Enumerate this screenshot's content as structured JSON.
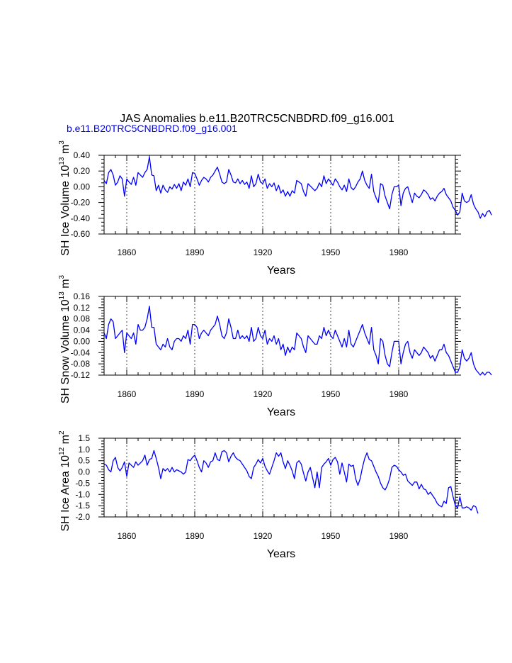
{
  "header": {
    "title": "JAS Anomalies b.e11.B20TRC5CNBDRD.f09_g16.001",
    "subtitle": "b.e11.B20TRC5CNBDRD.f09_g16.001"
  },
  "colors": {
    "series": "#0000ff",
    "axis": "#000000"
  },
  "chart_data": [
    {
      "type": "line",
      "title": "JAS Anomalies b.e11.B20TRC5CNBDRD.f09_g16.001",
      "xlabel": "Years",
      "ylabel_html": "SH Ice Volume 10<tspan baseline-shift=\"super\" font-size=\"10\">13</tspan> m<tspan baseline-shift=\"super\" font-size=\"10\">3</tspan>",
      "ylabel_parts": [
        "SH Ice Volume 10",
        "13",
        " m",
        "3"
      ],
      "xlim": [
        1850,
        2005
      ],
      "ylim": [
        -0.6,
        0.4
      ],
      "xticks": [
        1860,
        1890,
        1920,
        1950,
        1980
      ],
      "xtick_labels": [
        "1860",
        "1890",
        "1920",
        "1950",
        "1980"
      ],
      "yticks": [
        -0.6,
        -0.4,
        -0.2,
        0.0,
        0.2,
        0.4
      ],
      "ytick_labels": [
        "-0.60",
        "-0.40",
        "-0.20",
        "0.00",
        "0.20",
        "0.40"
      ],
      "grid": "vertical dashed at x ticks",
      "series": [
        {
          "name": "b.e11.B20TRC5CNBDRD.f09_g16.001",
          "x_start": 1850,
          "values": [
            0.08,
            0.04,
            0.18,
            0.22,
            0.15,
            0.02,
            0.06,
            0.14,
            0.1,
            -0.12,
            0.1,
            0.06,
            0.03,
            0.12,
            0.02,
            0.18,
            0.15,
            0.12,
            0.18,
            0.22,
            0.38,
            0.15,
            0.14,
            -0.05,
            0.02,
            -0.08,
            0.02,
            -0.04,
            -0.07,
            0.0,
            -0.03,
            0.03,
            -0.02,
            0.04,
            -0.05,
            0.06,
            0.02,
            0.1,
            0.0,
            0.18,
            0.17,
            0.1,
            0.02,
            0.08,
            0.12,
            0.1,
            0.06,
            0.12,
            0.15,
            0.2,
            0.25,
            0.16,
            0.06,
            0.04,
            0.06,
            0.22,
            0.15,
            0.06,
            0.05,
            0.1,
            0.04,
            0.08,
            0.03,
            0.06,
            -0.02,
            0.14,
            0.0,
            0.04,
            0.16,
            0.06,
            0.04,
            0.1,
            -0.02,
            0.04,
            0.0,
            0.05,
            -0.05,
            0.02,
            -0.08,
            -0.04,
            -0.12,
            -0.06,
            -0.12,
            -0.05,
            -0.08,
            0.08,
            0.06,
            0.04,
            -0.06,
            -0.12,
            0.04,
            0.01,
            -0.02,
            -0.05,
            -0.02,
            0.05,
            0.0,
            0.14,
            0.04,
            0.1,
            0.06,
            0.02,
            0.1,
            0.06,
            0.0,
            -0.04,
            0.02,
            -0.06,
            0.1,
            -0.01,
            -0.04,
            0.0,
            0.06,
            0.1,
            0.2,
            0.08,
            0.02,
            -0.02,
            0.16,
            -0.06,
            -0.14,
            -0.2,
            0.04,
            0.02,
            -0.12,
            -0.2,
            -0.28,
            -0.1,
            0.0,
            0.0,
            0.02,
            -0.24,
            -0.08,
            -0.02,
            0.0,
            -0.1,
            -0.2,
            -0.08,
            -0.12,
            -0.14,
            -0.1,
            -0.04,
            -0.06,
            -0.1,
            -0.16,
            -0.14,
            -0.18,
            -0.12,
            -0.08,
            -0.06,
            -0.02,
            -0.1,
            -0.14,
            -0.18,
            -0.26,
            -0.3,
            -0.36,
            -0.32,
            -0.08,
            -0.18,
            -0.2,
            -0.18,
            -0.1,
            -0.22,
            -0.28,
            -0.32,
            -0.4,
            -0.34,
            -0.38,
            -0.32,
            -0.3,
            -0.36
          ]
        }
      ]
    },
    {
      "type": "line",
      "xlabel": "Years",
      "ylabel_parts": [
        "SH Snow Volume 10",
        "13",
        " m",
        "3"
      ],
      "xlim": [
        1850,
        2005
      ],
      "ylim": [
        -0.12,
        0.16
      ],
      "xticks": [
        1860,
        1890,
        1920,
        1950,
        1980
      ],
      "xtick_labels": [
        "1860",
        "1890",
        "1920",
        "1950",
        "1980"
      ],
      "yticks": [
        -0.12,
        -0.08,
        -0.04,
        0.0,
        0.04,
        0.08,
        0.12,
        0.16
      ],
      "ytick_labels": [
        "-0.12",
        "-0.08",
        "-0.04",
        "0.00",
        "0.04",
        "0.08",
        "0.12",
        "0.16"
      ],
      "grid": "vertical dashed at x ticks",
      "series": [
        {
          "name": "b.e11.B20TRC5CNBDRD.f09_g16.001",
          "x_start": 1850,
          "values": [
            0.03,
            0.01,
            0.06,
            0.08,
            0.07,
            0.01,
            0.02,
            0.03,
            0.04,
            -0.04,
            0.03,
            0.02,
            0.01,
            0.03,
            -0.01,
            0.06,
            0.04,
            0.04,
            0.05,
            0.08,
            0.125,
            0.05,
            0.05,
            -0.01,
            -0.02,
            -0.03,
            -0.01,
            -0.02,
            0.01,
            -0.02,
            -0.03,
            0.0,
            0.01,
            0.01,
            0.0,
            0.02,
            0.01,
            0.04,
            -0.01,
            0.06,
            0.06,
            0.05,
            0.01,
            0.03,
            0.04,
            0.03,
            0.02,
            0.04,
            0.05,
            0.06,
            0.09,
            0.06,
            0.02,
            0.01,
            0.03,
            0.08,
            0.05,
            0.01,
            0.01,
            0.04,
            0.01,
            0.02,
            0.01,
            0.02,
            0.0,
            0.05,
            0.0,
            0.01,
            0.05,
            0.02,
            0.01,
            0.04,
            -0.01,
            0.01,
            0.0,
            0.02,
            -0.01,
            0.01,
            -0.03,
            -0.01,
            -0.05,
            -0.02,
            -0.04,
            -0.02,
            -0.03,
            0.03,
            0.02,
            0.01,
            -0.02,
            -0.04,
            0.02,
            0.01,
            0.0,
            -0.01,
            -0.01,
            0.02,
            0.01,
            0.05,
            0.02,
            0.04,
            0.02,
            0.01,
            0.04,
            0.02,
            0.0,
            -0.02,
            0.01,
            -0.02,
            0.04,
            -0.01,
            -0.02,
            0.0,
            0.02,
            0.04,
            0.06,
            0.03,
            0.01,
            -0.01,
            0.05,
            -0.03,
            -0.05,
            -0.08,
            0.01,
            0.0,
            -0.05,
            -0.08,
            -0.09,
            -0.04,
            0.0,
            0.0,
            0.0,
            -0.08,
            -0.04,
            -0.01,
            0.0,
            -0.04,
            -0.06,
            -0.03,
            -0.04,
            -0.05,
            -0.04,
            -0.02,
            -0.03,
            -0.04,
            -0.06,
            -0.05,
            -0.07,
            -0.05,
            -0.03,
            -0.03,
            -0.01,
            -0.04,
            -0.05,
            -0.07,
            -0.09,
            -0.11,
            -0.11,
            -0.09,
            -0.03,
            -0.06,
            -0.07,
            -0.06,
            -0.04,
            -0.08,
            -0.1,
            -0.11,
            -0.12,
            -0.11,
            -0.12,
            -0.11,
            -0.11,
            -0.12
          ]
        }
      ]
    },
    {
      "type": "line",
      "xlabel": "Years",
      "ylabel_parts": [
        "SH Ice Area 10",
        "12",
        " m",
        "2"
      ],
      "xlim": [
        1850,
        2005
      ],
      "ylim": [
        -2.0,
        1.5
      ],
      "xticks": [
        1860,
        1890,
        1920,
        1950,
        1980
      ],
      "xtick_labels": [
        "1860",
        "1890",
        "1920",
        "1950",
        "1980"
      ],
      "yticks": [
        -2.0,
        -1.5,
        -1.0,
        -0.5,
        0.0,
        0.5,
        1.0,
        1.5
      ],
      "ytick_labels": [
        "-2.0",
        "-1.5",
        "-1.0",
        "-0.5",
        "0.0",
        "0.5",
        "1.0",
        "1.5"
      ],
      "grid": "vertical dashed at x ticks",
      "series": [
        {
          "name": "b.e11.B20TRC5CNBDRD.f09_g16.001",
          "x_start": 1850,
          "values": [
            0.35,
            0.3,
            0.1,
            0.0,
            0.5,
            0.65,
            0.2,
            0.05,
            0.2,
            0.45,
            -0.2,
            0.4,
            0.3,
            0.2,
            0.45,
            0.3,
            0.4,
            0.5,
            0.75,
            0.3,
            0.55,
            0.6,
            0.95,
            0.6,
            0.2,
            -0.3,
            0.15,
            0.05,
            0.15,
            0.0,
            0.2,
            0.0,
            0.1,
            0.05,
            0.0,
            -0.1,
            0.0,
            0.55,
            0.5,
            0.65,
            0.75,
            0.5,
            0.2,
            0.0,
            0.5,
            0.4,
            0.2,
            0.45,
            0.5,
            0.85,
            0.55,
            0.5,
            0.9,
            0.95,
            0.85,
            0.45,
            0.7,
            0.85,
            0.65,
            0.55,
            0.5,
            0.35,
            0.2,
            0.05,
            -0.2,
            -0.3,
            0.2,
            0.35,
            0.55,
            0.4,
            0.6,
            0.25,
            0.05,
            -0.1,
            0.2,
            0.5,
            0.85,
            0.7,
            0.85,
            0.45,
            0.15,
            0.5,
            0.3,
            0.05,
            -0.3,
            0.4,
            0.5,
            0.35,
            -0.05,
            -0.4,
            0.0,
            0.2,
            -0.25,
            -0.7,
            0.0,
            -0.7,
            0.2,
            0.35,
            0.45,
            0.6,
            0.3,
            0.55,
            0.65,
            0.45,
            -0.1,
            0.4,
            0.0,
            -0.45,
            0.35,
            0.25,
            0.3,
            -0.3,
            -0.6,
            -0.3,
            0.2,
            0.6,
            0.85,
            0.55,
            0.5,
            0.25,
            0.0,
            -0.2,
            -0.5,
            -0.7,
            -0.8,
            -0.6,
            -0.3,
            0.2,
            0.3,
            0.25,
            0.1,
            0.0,
            -0.15,
            -0.1,
            -0.4,
            -0.5,
            -0.6,
            -0.45,
            -0.45,
            -0.75,
            -0.55,
            -0.75,
            -0.8,
            -1.0,
            -0.9,
            -1.05,
            -1.2,
            -1.4,
            -1.5,
            -1.55,
            -1.3,
            -1.4,
            -0.7,
            -0.65,
            -1.1,
            -1.5,
            -1.6,
            -1.1,
            -1.6,
            -1.6,
            -1.55,
            -1.6,
            -1.7,
            -1.5,
            -1.55,
            -1.85
          ]
        }
      ]
    }
  ]
}
